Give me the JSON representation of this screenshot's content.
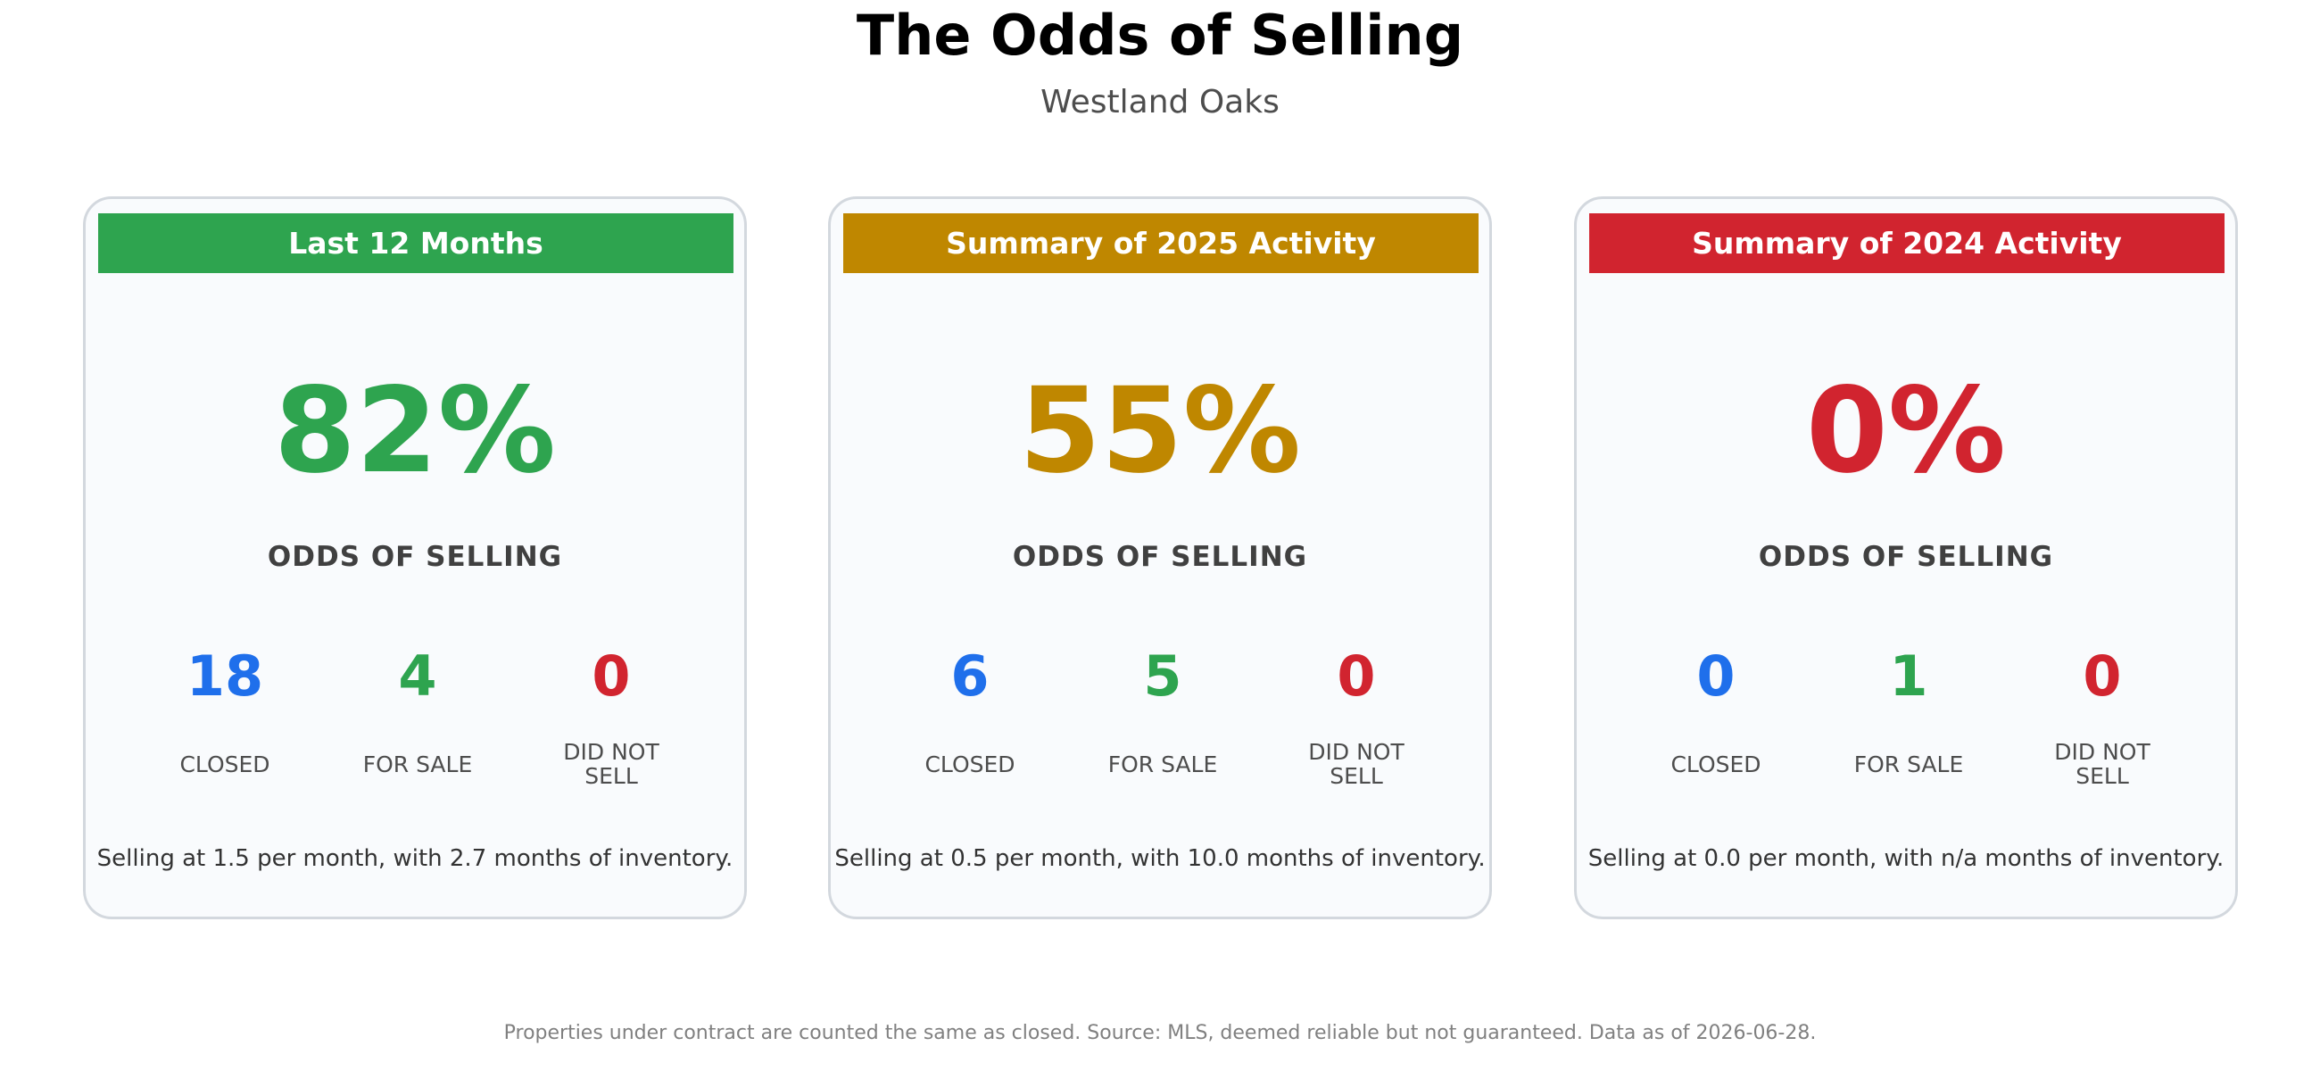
{
  "title": "The Odds of Selling",
  "subtitle": "Westland Oaks",
  "colors": {
    "green": "#2ea44f",
    "gold": "#bf8700",
    "red": "#d1242f",
    "blue": "#1f6feb"
  },
  "cards": [
    {
      "header": "Last 12 Months",
      "header_color": "#2ea44f",
      "odds_pct": "82%",
      "odds_color": "#2ea44f",
      "odds_label": "ODDS OF SELLING",
      "stats": [
        {
          "value": "18",
          "label": "CLOSED",
          "color": "#1f6feb"
        },
        {
          "value": "4",
          "label": "FOR SALE",
          "color": "#2ea44f"
        },
        {
          "value": "0",
          "label": "DID NOT SELL",
          "color": "#d1242f"
        }
      ],
      "summary": "Selling at 1.5 per month, with 2.7 months of inventory."
    },
    {
      "header": "Summary of 2025 Activity",
      "header_color": "#bf8700",
      "odds_pct": "55%",
      "odds_color": "#bf8700",
      "odds_label": "ODDS OF SELLING",
      "stats": [
        {
          "value": "6",
          "label": "CLOSED",
          "color": "#1f6feb"
        },
        {
          "value": "5",
          "label": "FOR SALE",
          "color": "#2ea44f"
        },
        {
          "value": "0",
          "label": "DID NOT SELL",
          "color": "#d1242f"
        }
      ],
      "summary": "Selling at 0.5 per month, with 10.0 months of inventory."
    },
    {
      "header": "Summary of 2024 Activity",
      "header_color": "#d1242f",
      "odds_pct": "0%",
      "odds_color": "#d1242f",
      "odds_label": "ODDS OF SELLING",
      "stats": [
        {
          "value": "0",
          "label": "CLOSED",
          "color": "#1f6feb"
        },
        {
          "value": "1",
          "label": "FOR SALE",
          "color": "#2ea44f"
        },
        {
          "value": "0",
          "label": "DID NOT SELL",
          "color": "#d1242f"
        }
      ],
      "summary": "Selling at 0.0 per month, with n/a months of inventory."
    }
  ],
  "footnote": "Properties under contract are counted the same as closed. Source: MLS, deemed reliable but not guaranteed. Data as of 2026-06-28."
}
